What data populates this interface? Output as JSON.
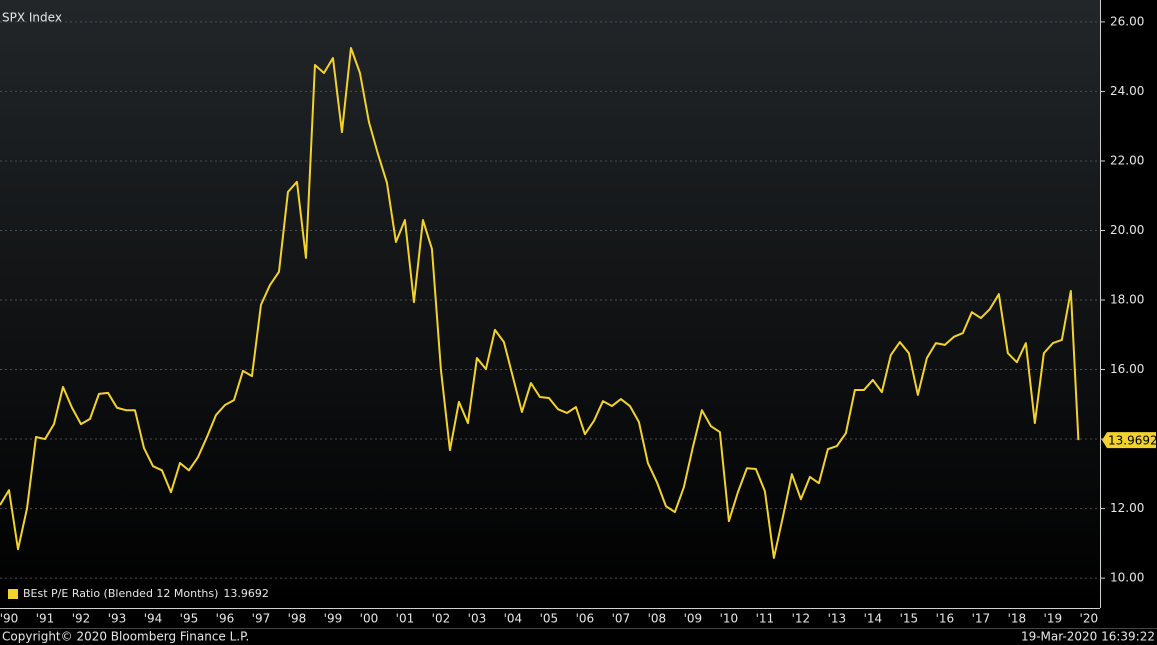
{
  "chart_data": {
    "type": "line",
    "title": "SPX Index",
    "footer_left": "Copyright© 2020 Bloomberg Finance L.P.",
    "footer_right": "19-Mar-2020 16:39:22",
    "grid": true,
    "legend": "bottom-left",
    "x": [
      1990.25,
      1990.5,
      1990.75,
      1991,
      1991.25,
      1991.5,
      1991.75,
      1992,
      1992.25,
      1992.5,
      1992.75,
      1993,
      1993.25,
      1993.5,
      1993.75,
      1994,
      1994.25,
      1994.5,
      1994.75,
      1995,
      1995.25,
      1995.5,
      1995.75,
      1996,
      1996.25,
      1996.5,
      1996.75,
      1997,
      1997.25,
      1997.5,
      1997.75,
      1998,
      1998.25,
      1998.5,
      1998.75,
      1999,
      1999.25,
      1999.5,
      1999.75,
      2000,
      2000.25,
      2000.5,
      2000.75,
      2001,
      2001.25,
      2001.5,
      2001.75,
      2002,
      2002.25,
      2002.5,
      2002.75,
      2003,
      2003.25,
      2003.5,
      2003.75,
      2004,
      2004.25,
      2004.5,
      2004.75,
      2005,
      2005.25,
      2005.5,
      2005.75,
      2006,
      2006.25,
      2006.5,
      2006.75,
      2007,
      2007.25,
      2007.5,
      2007.75,
      2008,
      2008.25,
      2008.5,
      2008.75,
      2009,
      2009.25,
      2009.5,
      2009.75,
      2010,
      2010.25,
      2010.5,
      2010.75,
      2011,
      2011.25,
      2011.5,
      2011.75,
      2012,
      2012.25,
      2012.5,
      2012.75,
      2013,
      2013.25,
      2013.5,
      2013.75,
      2014,
      2014.25,
      2014.5,
      2014.75,
      2015,
      2015.25,
      2015.5,
      2015.75,
      2016,
      2016.25,
      2016.5,
      2016.75,
      2017,
      2017.25,
      2017.5,
      2017.75,
      2018,
      2018.25,
      2018.5,
      2018.75,
      2019,
      2019.25,
      2019.5,
      2019.75,
      2020,
      2020.21
    ],
    "series": [
      {
        "name": "BEst P/E Ratio (Blended 12 Months)",
        "color": "#f2d22e",
        "values": [
          12.1,
          12.53,
          10.83,
          12.0,
          14.06,
          14.0,
          14.43,
          15.5,
          14.9,
          14.43,
          14.58,
          15.3,
          15.33,
          14.9,
          14.83,
          14.83,
          13.74,
          13.22,
          13.1,
          12.47,
          13.31,
          13.1,
          13.48,
          14.06,
          14.69,
          14.98,
          15.12,
          15.96,
          15.81,
          17.86,
          18.43,
          18.81,
          21.11,
          21.4,
          19.21,
          24.76,
          24.53,
          24.96,
          22.83,
          25.25,
          24.53,
          23.12,
          22.2,
          21.37,
          19.67,
          20.3,
          17.94,
          20.3,
          19.47,
          15.99,
          13.68,
          15.07,
          14.46,
          16.33,
          16.01,
          17.14,
          16.79,
          15.78,
          14.78,
          15.61,
          15.21,
          15.18,
          14.86,
          14.75,
          14.92,
          14.14,
          14.52,
          15.09,
          14.95,
          15.15,
          14.95,
          14.49,
          13.31,
          12.76,
          12.07,
          11.9,
          12.62,
          13.77,
          14.83,
          14.37,
          14.2,
          11.64,
          12.47,
          13.16,
          13.14,
          12.5,
          10.58,
          11.76,
          12.99,
          12.27,
          12.91,
          12.73,
          13.71,
          13.8,
          14.17,
          15.41,
          15.41,
          15.7,
          15.35,
          16.42,
          16.79,
          16.47,
          15.27,
          16.33,
          16.76,
          16.71,
          16.94,
          17.05,
          17.65,
          17.48,
          17.74,
          18.17,
          16.47,
          16.21,
          16.76,
          14.46,
          16.47,
          16.76,
          16.85,
          18.26,
          13.9692
        ]
      }
    ],
    "xlim": [
      1990.25,
      2020.81
    ],
    "xticks": [
      {
        "value": 1990.5,
        "label": "'90"
      },
      {
        "value": 1991.5,
        "label": "'91"
      },
      {
        "value": 1992.5,
        "label": "'92"
      },
      {
        "value": 1993.5,
        "label": "'93"
      },
      {
        "value": 1994.5,
        "label": "'94"
      },
      {
        "value": 1995.5,
        "label": "'95"
      },
      {
        "value": 1996.5,
        "label": "'96"
      },
      {
        "value": 1997.5,
        "label": "'97"
      },
      {
        "value": 1998.5,
        "label": "'98"
      },
      {
        "value": 1999.5,
        "label": "'99"
      },
      {
        "value": 2000.5,
        "label": "'00"
      },
      {
        "value": 2001.5,
        "label": "'01"
      },
      {
        "value": 2002.5,
        "label": "'02"
      },
      {
        "value": 2003.5,
        "label": "'03"
      },
      {
        "value": 2004.5,
        "label": "'04"
      },
      {
        "value": 2005.5,
        "label": "'05"
      },
      {
        "value": 2006.5,
        "label": "'06"
      },
      {
        "value": 2007.5,
        "label": "'07"
      },
      {
        "value": 2008.5,
        "label": "'08"
      },
      {
        "value": 2009.5,
        "label": "'09"
      },
      {
        "value": 2010.5,
        "label": "'10"
      },
      {
        "value": 2011.5,
        "label": "'11"
      },
      {
        "value": 2012.5,
        "label": "'12"
      },
      {
        "value": 2013.5,
        "label": "'13"
      },
      {
        "value": 2014.5,
        "label": "'14"
      },
      {
        "value": 2015.5,
        "label": "'15"
      },
      {
        "value": 2016.5,
        "label": "'16"
      },
      {
        "value": 2017.5,
        "label": "'17"
      },
      {
        "value": 2018.5,
        "label": "'18"
      },
      {
        "value": 2019.5,
        "label": "'19"
      },
      {
        "value": 2020.5,
        "label": "'20"
      }
    ],
    "ylim": [
      9.14,
      26.63
    ],
    "yticks": [
      {
        "value": 10,
        "label": "10.00"
      },
      {
        "value": 12,
        "label": "12.00"
      },
      {
        "value": 14,
        "label": "14.00"
      },
      {
        "value": 16,
        "label": "16.00"
      },
      {
        "value": 18,
        "label": "18.00"
      },
      {
        "value": 20,
        "label": "20.00"
      },
      {
        "value": 22,
        "label": "22.00"
      },
      {
        "value": 24,
        "label": "24.00"
      },
      {
        "value": 26,
        "label": "26.00"
      }
    ]
  }
}
